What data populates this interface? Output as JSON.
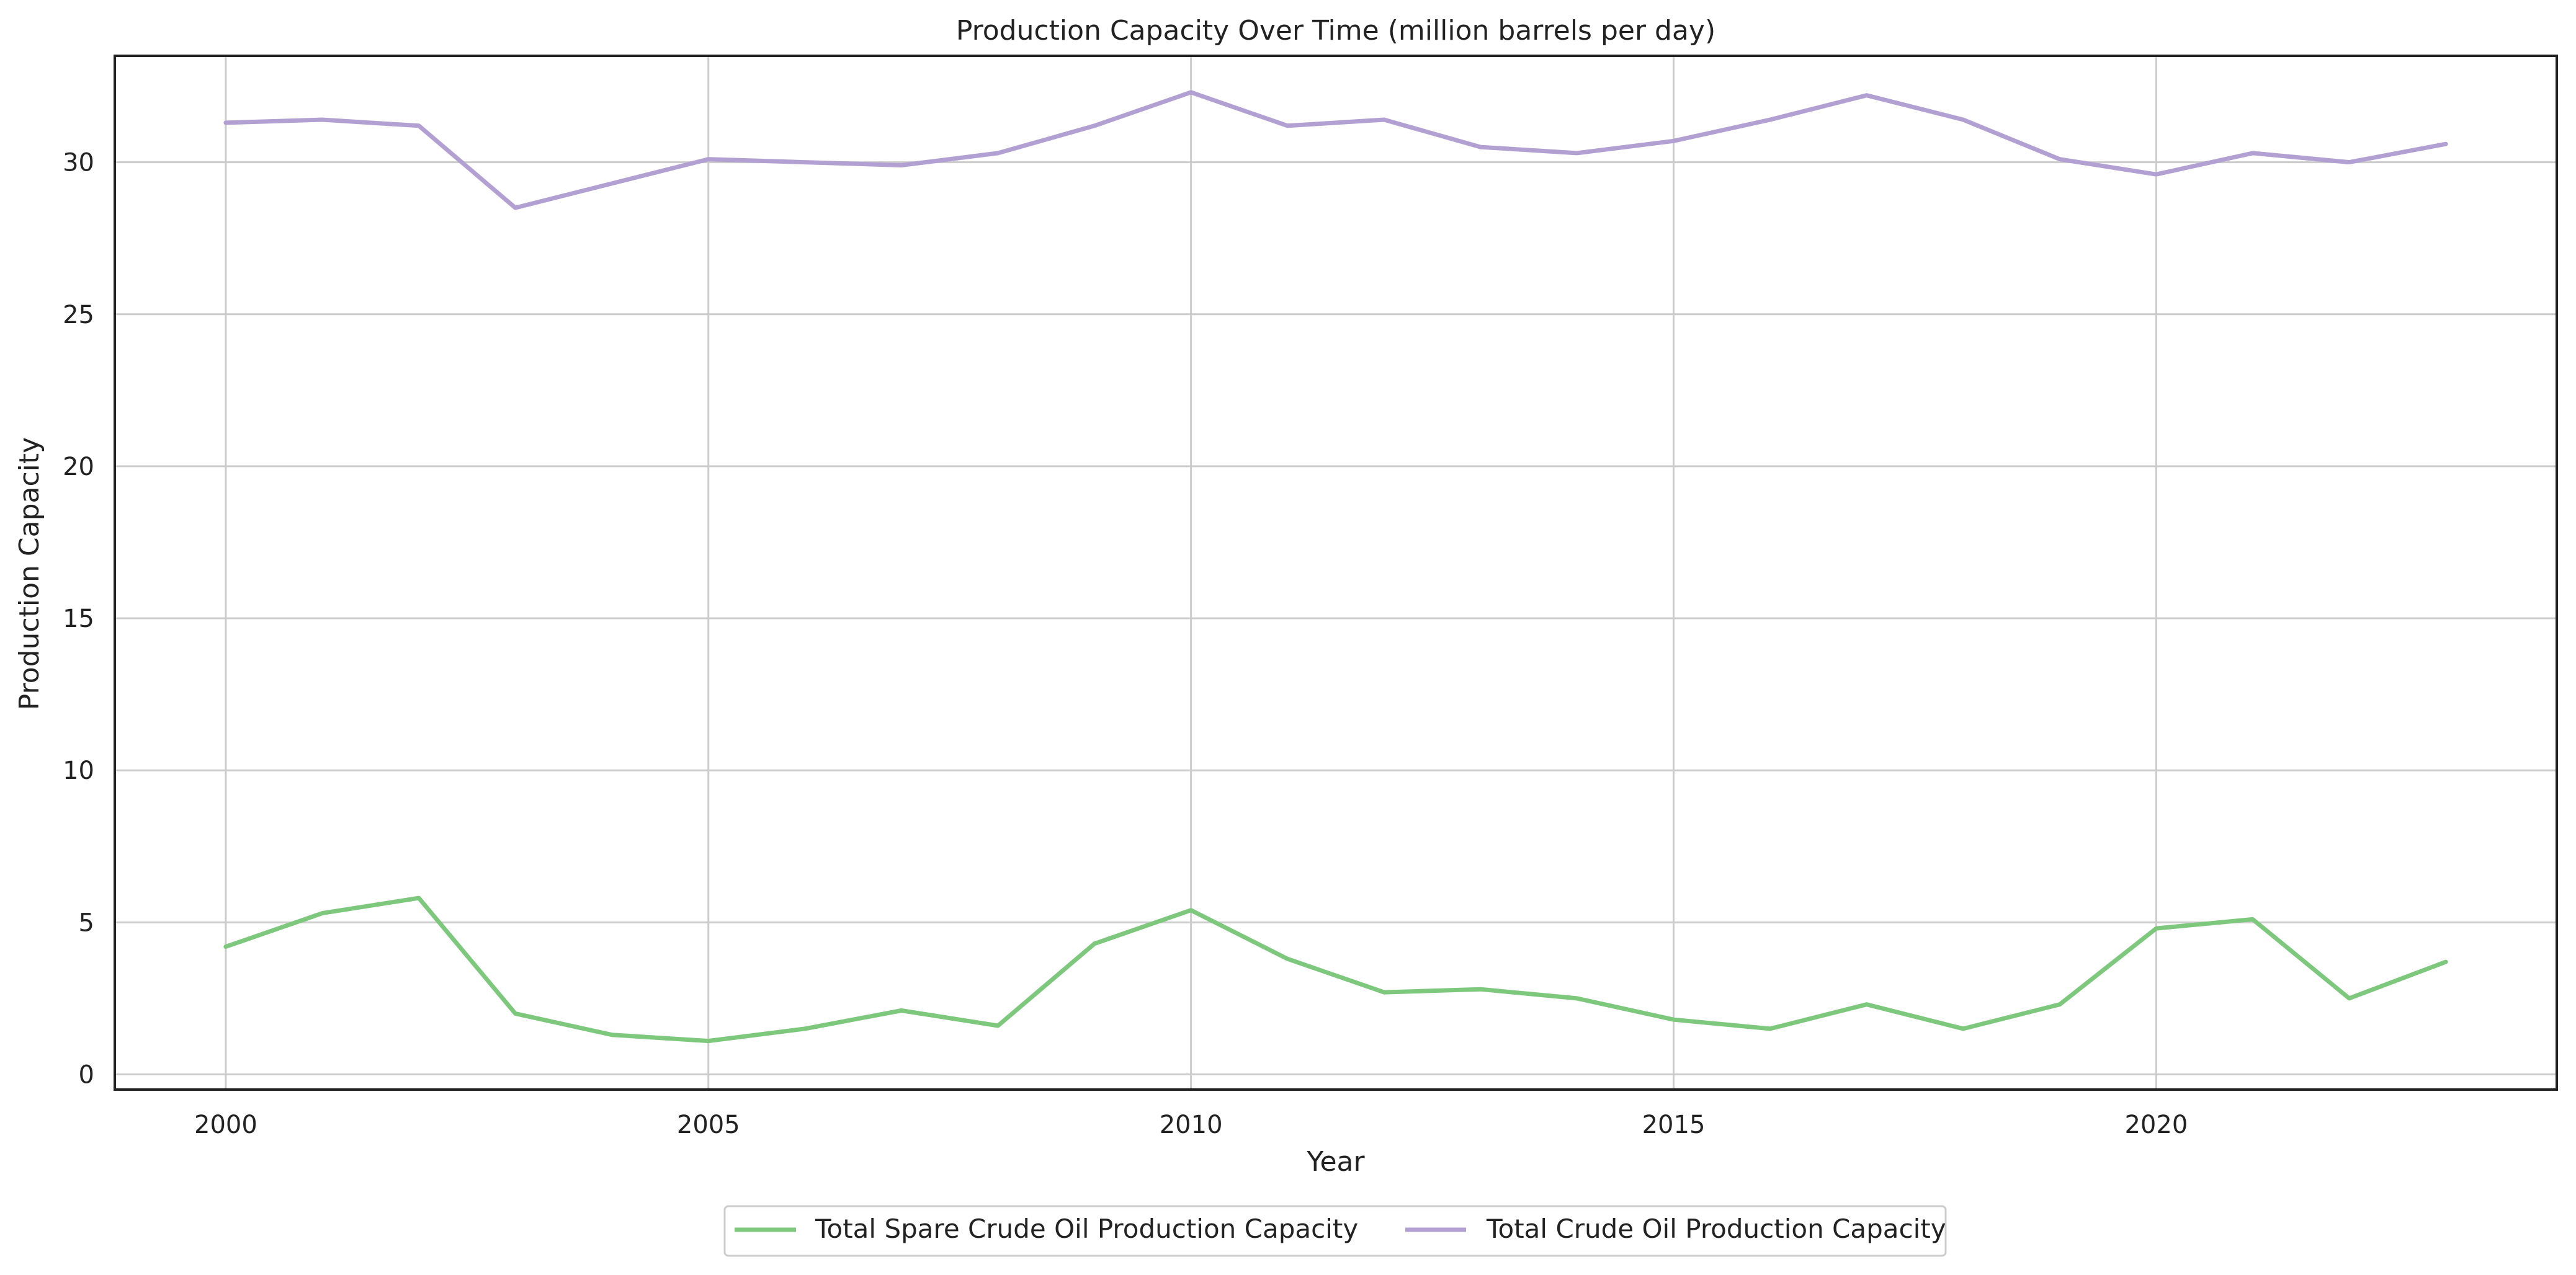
{
  "chart_data": {
    "type": "line",
    "title": "Production Capacity Over Time (million barrels per day)",
    "xlabel": "Year",
    "ylabel": "Production Capacity",
    "xlim": [
      1998.85,
      2024.15
    ],
    "ylim": [
      -0.5,
      33.5
    ],
    "xticks": [
      2000,
      2005,
      2010,
      2015,
      2020
    ],
    "yticks": [
      0,
      5,
      10,
      15,
      20,
      25,
      30
    ],
    "grid": true,
    "legend_position": "bottom-center",
    "x": [
      2000,
      2001,
      2002,
      2003,
      2004,
      2005,
      2006,
      2007,
      2008,
      2009,
      2010,
      2011,
      2012,
      2013,
      2014,
      2015,
      2016,
      2017,
      2018,
      2019,
      2020,
      2021,
      2022,
      2023
    ],
    "series": [
      {
        "name": "Total Spare Crude Oil Production Capacity",
        "color": "#7dc87d",
        "values": [
          4.2,
          5.3,
          5.8,
          2.0,
          1.3,
          1.1,
          1.5,
          2.1,
          1.6,
          4.3,
          5.4,
          3.8,
          2.7,
          2.8,
          2.5,
          1.8,
          1.5,
          2.3,
          1.5,
          2.3,
          4.8,
          5.1,
          2.5,
          3.7
        ]
      },
      {
        "name": "Total Crude Oil Production Capacity",
        "color": "#b3a0d3",
        "values": [
          31.3,
          31.4,
          31.2,
          28.5,
          29.3,
          30.1,
          30.0,
          29.9,
          30.3,
          31.2,
          32.3,
          31.2,
          31.4,
          30.5,
          30.3,
          30.7,
          31.4,
          32.2,
          31.4,
          30.1,
          29.6,
          30.3,
          30.0,
          30.6
        ]
      }
    ]
  }
}
